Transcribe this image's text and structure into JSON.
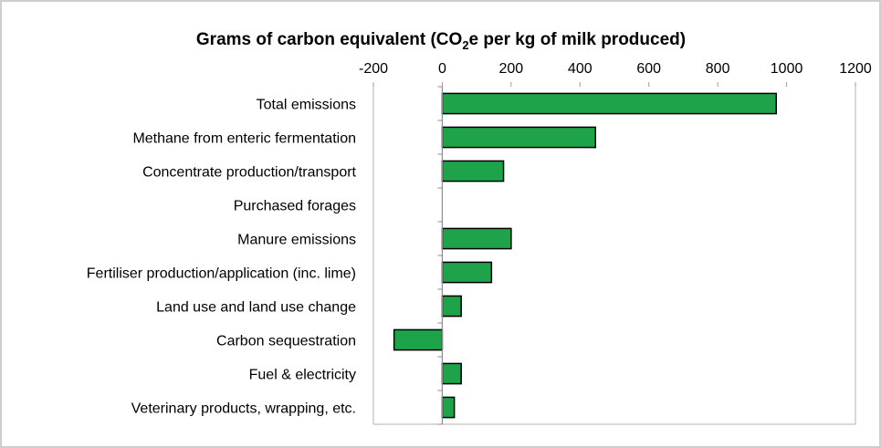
{
  "chart_data": {
    "type": "bar",
    "orientation": "horizontal",
    "title": {
      "prefix": "Grams of carbon equivalent (CO",
      "subscript": "2",
      "suffix": "e per kg of milk produced)"
    },
    "xlim": [
      -200,
      1200
    ],
    "xticks": [
      -200,
      0,
      200,
      400,
      600,
      800,
      1000,
      1200
    ],
    "x_axis_position": "top",
    "grid": false,
    "categories": [
      "Total emissions",
      "Methane from enteric fermentation",
      "Concentrate production/transport",
      "Purchased forages",
      "Manure emissions",
      "Fertiliser production/application (inc. lime)",
      "Land use and land use change",
      "Carbon sequestration",
      "Fuel & electricity",
      "Veterinary products, wrapping, etc."
    ],
    "values": [
      970,
      445,
      178,
      0,
      200,
      143,
      55,
      -140,
      55,
      35
    ],
    "bar_color": "#1FA34A",
    "bar_edge_color": "#000000"
  }
}
